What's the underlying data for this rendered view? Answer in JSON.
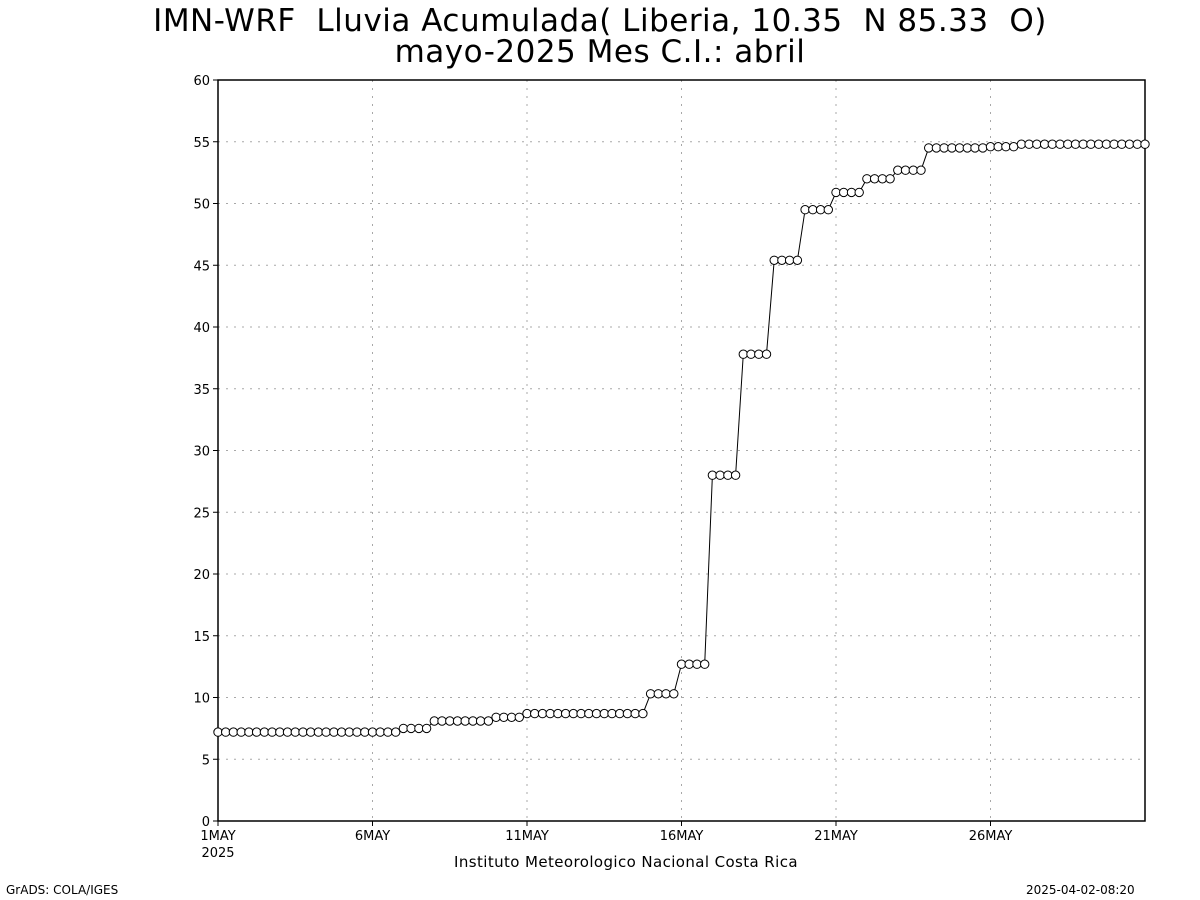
{
  "chart_data": {
    "type": "line",
    "title": "IMN-WRF  Lluvia Acumulada( Liberia, 10.35  N 85.33  O)",
    "subtitle": "mayo-2025 Mes C.I.: abril",
    "xlabel": "Instituto Meteorologico Nacional Costa Rica",
    "ylabel": "",
    "ylim": [
      0,
      60
    ],
    "yticks": [
      0,
      5,
      10,
      15,
      20,
      25,
      30,
      35,
      40,
      45,
      50,
      55,
      60
    ],
    "xlim_days": [
      1,
      31
    ],
    "xticks": [
      {
        "day": 1,
        "label": "1MAY",
        "sublabel": "2025"
      },
      {
        "day": 6,
        "label": "6MAY",
        "sublabel": ""
      },
      {
        "day": 11,
        "label": "11MAY",
        "sublabel": ""
      },
      {
        "day": 16,
        "label": "16MAY",
        "sublabel": ""
      },
      {
        "day": 21,
        "label": "21MAY",
        "sublabel": ""
      },
      {
        "day": 26,
        "label": "26MAY",
        "sublabel": ""
      }
    ],
    "grid": true,
    "marker": "open-circle",
    "line_color": "#000000",
    "x_step_hours": 6,
    "values": [
      7.2,
      7.2,
      7.2,
      7.2,
      7.2,
      7.2,
      7.2,
      7.2,
      7.2,
      7.2,
      7.2,
      7.2,
      7.2,
      7.2,
      7.2,
      7.2,
      7.2,
      7.2,
      7.2,
      7.2,
      7.2,
      7.2,
      7.2,
      7.2,
      7.5,
      7.5,
      7.5,
      7.5,
      8.1,
      8.1,
      8.1,
      8.1,
      8.1,
      8.1,
      8.1,
      8.1,
      8.4,
      8.4,
      8.4,
      8.4,
      8.7,
      8.7,
      8.7,
      8.7,
      8.7,
      8.7,
      8.7,
      8.7,
      8.7,
      8.7,
      8.7,
      8.7,
      8.7,
      8.7,
      8.7,
      8.7,
      10.3,
      10.3,
      10.3,
      10.3,
      12.7,
      12.7,
      12.7,
      12.7,
      28.0,
      28.0,
      28.0,
      28.0,
      37.8,
      37.8,
      37.8,
      37.8,
      45.4,
      45.4,
      45.4,
      45.4,
      49.5,
      49.5,
      49.5,
      49.5,
      50.9,
      50.9,
      50.9,
      50.9,
      52.0,
      52.0,
      52.0,
      52.0,
      52.7,
      52.7,
      52.7,
      52.7,
      54.5,
      54.5,
      54.5,
      54.5,
      54.5,
      54.5,
      54.5,
      54.5,
      54.6,
      54.6,
      54.6,
      54.6,
      54.8,
      54.8,
      54.8,
      54.8,
      54.8,
      54.8,
      54.8,
      54.8,
      54.8,
      54.8,
      54.8,
      54.8,
      54.8,
      54.8,
      54.8,
      54.8,
      54.8
    ]
  },
  "footer": {
    "left": "GrADS: COLA/IGES",
    "right": "2025-04-02-08:20"
  }
}
